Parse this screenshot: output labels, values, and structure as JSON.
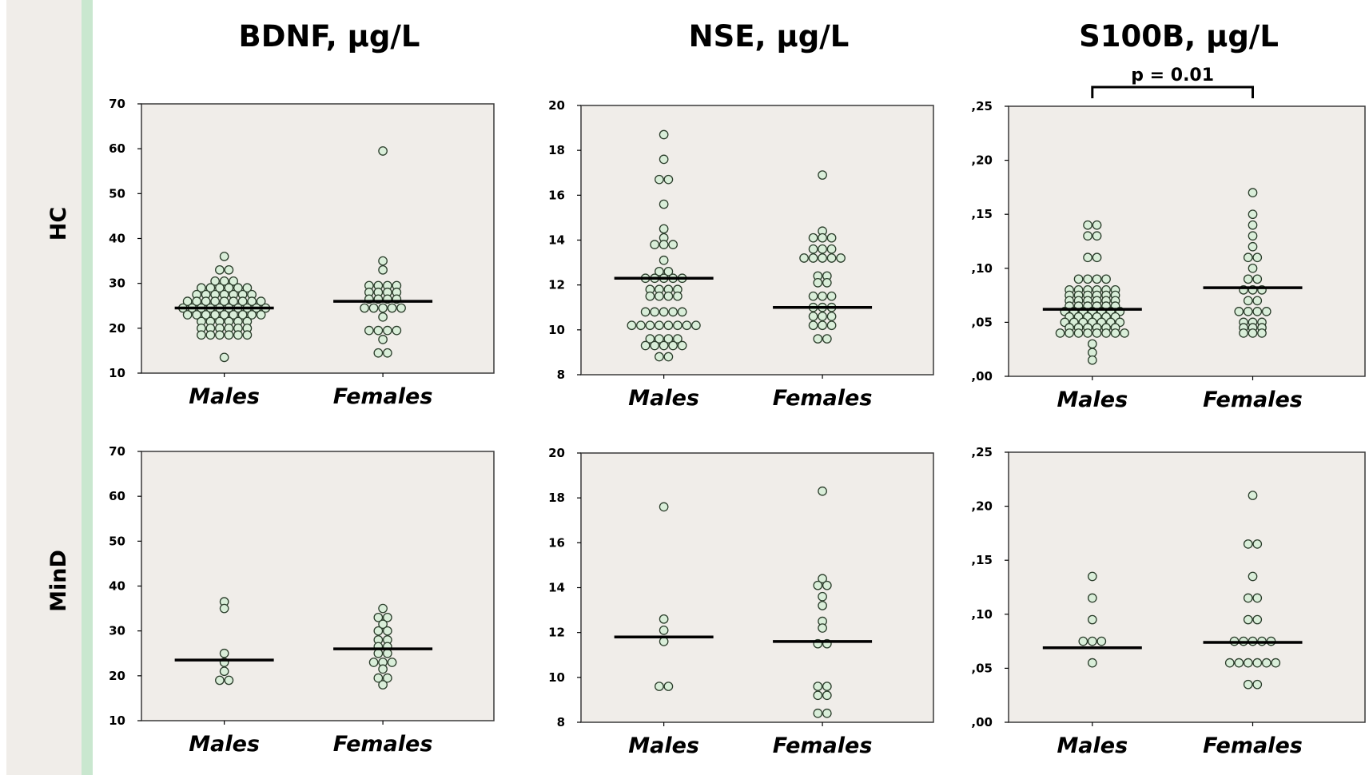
{
  "columns": [
    "BDNF, µg/L",
    "NSE, µg/L",
    "S100B, µg/L"
  ],
  "rows": [
    "HC",
    "MinD"
  ],
  "colors": {
    "panel_bg": "#f0ede9",
    "dot_fill": "#d9eed9",
    "dot_stroke": "#2b3d2b",
    "side_band": "#f0ede9",
    "side_stripe": "#c9e7cf"
  },
  "chart_data": [
    {
      "type": "scatter",
      "subtype": "dot-plot with median line",
      "title": "BDNF, µg/L",
      "group": "HC",
      "categories": [
        "Males",
        "Females"
      ],
      "ylim": [
        10,
        70
      ],
      "yticks": [
        "10",
        "20",
        "30",
        "40",
        "50",
        "60",
        "70"
      ],
      "series": [
        {
          "name": "Males",
          "median": 24.5,
          "values": [
            13.5,
            18.5,
            18.5,
            18.5,
            18.5,
            18.5,
            18.5,
            20,
            20,
            20,
            20,
            20,
            20,
            21.5,
            21.5,
            21.5,
            21.5,
            21.5,
            21.5,
            23,
            23,
            23,
            23,
            23,
            23,
            23,
            23,
            23,
            24.5,
            24.5,
            24.5,
            24.5,
            24.5,
            24.5,
            24.5,
            24.5,
            24.5,
            24.5,
            26,
            26,
            26,
            26,
            26,
            26,
            26,
            26,
            26,
            27.5,
            27.5,
            27.5,
            27.5,
            27.5,
            27.5,
            27.5,
            29,
            29,
            29,
            29,
            29,
            29,
            30.5,
            30.5,
            30.5,
            33,
            33,
            36
          ]
        },
        {
          "name": "Females",
          "median": 26,
          "values": [
            14.5,
            14.5,
            17.5,
            19.5,
            19.5,
            19.5,
            19.5,
            22.5,
            24.5,
            24.5,
            24.5,
            24.5,
            24.5,
            26.5,
            26.5,
            26.5,
            26.5,
            28,
            28,
            28,
            28,
            29.5,
            29.5,
            29.5,
            29.5,
            33,
            35,
            59.5
          ]
        }
      ]
    },
    {
      "type": "scatter",
      "subtype": "dot-plot with median line",
      "title": "NSE, µg/L",
      "group": "HC",
      "categories": [
        "Males",
        "Females"
      ],
      "ylim": [
        8,
        20
      ],
      "yticks": [
        "8",
        "10",
        "12",
        "14",
        "16",
        "18",
        "20"
      ],
      "series": [
        {
          "name": "Males",
          "median": 12.3,
          "values": [
            8.8,
            8.8,
            9.3,
            9.3,
            9.3,
            9.3,
            9.3,
            9.6,
            9.6,
            9.6,
            9.6,
            10.2,
            10.2,
            10.2,
            10.2,
            10.2,
            10.2,
            10.2,
            10.2,
            10.8,
            10.8,
            10.8,
            10.8,
            10.8,
            11.5,
            11.5,
            11.5,
            11.5,
            11.8,
            11.8,
            11.8,
            11.8,
            12.3,
            12.3,
            12.3,
            12.3,
            12.3,
            12.6,
            12.6,
            13.1,
            13.8,
            13.8,
            13.8,
            14.1,
            14.5,
            15.6,
            16.7,
            16.7,
            17.6,
            18.7
          ]
        },
        {
          "name": "Females",
          "median": 11,
          "values": [
            9.6,
            9.6,
            10.2,
            10.2,
            10.2,
            10.6,
            10.6,
            10.6,
            11,
            11,
            11,
            11.5,
            11.5,
            11.5,
            12.1,
            12.1,
            12.4,
            12.4,
            13.2,
            13.2,
            13.2,
            13.2,
            13.2,
            13.6,
            13.6,
            13.6,
            14.1,
            14.1,
            14.1,
            14.4,
            16.9
          ]
        }
      ]
    },
    {
      "type": "scatter",
      "subtype": "dot-plot with median line",
      "title": "S100B, µg/L",
      "group": "HC",
      "categories": [
        "Males",
        "Females"
      ],
      "ylim": [
        0,
        0.25
      ],
      "yticks": [
        ",00",
        ",05",
        ",10",
        ",15",
        ",20",
        ",25"
      ],
      "annotation": {
        "text": "p = 0.01",
        "between": [
          "Males",
          "Females"
        ]
      },
      "series": [
        {
          "name": "Males",
          "median": 0.062,
          "values": [
            0.015,
            0.022,
            0.03,
            0.04,
            0.04,
            0.04,
            0.04,
            0.04,
            0.04,
            0.04,
            0.04,
            0.045,
            0.045,
            0.045,
            0.045,
            0.045,
            0.045,
            0.05,
            0.05,
            0.05,
            0.05,
            0.05,
            0.05,
            0.05,
            0.055,
            0.055,
            0.055,
            0.055,
            0.055,
            0.055,
            0.06,
            0.06,
            0.06,
            0.06,
            0.06,
            0.06,
            0.06,
            0.065,
            0.065,
            0.065,
            0.065,
            0.065,
            0.065,
            0.07,
            0.07,
            0.07,
            0.07,
            0.07,
            0.07,
            0.075,
            0.075,
            0.075,
            0.075,
            0.075,
            0.075,
            0.08,
            0.08,
            0.08,
            0.08,
            0.08,
            0.08,
            0.09,
            0.09,
            0.09,
            0.09,
            0.11,
            0.11,
            0.13,
            0.13,
            0.14,
            0.14
          ]
        },
        {
          "name": "Females",
          "median": 0.082,
          "values": [
            0.04,
            0.04,
            0.04,
            0.045,
            0.045,
            0.045,
            0.05,
            0.05,
            0.05,
            0.06,
            0.06,
            0.06,
            0.06,
            0.07,
            0.07,
            0.08,
            0.08,
            0.08,
            0.09,
            0.09,
            0.1,
            0.11,
            0.11,
            0.12,
            0.13,
            0.14,
            0.15,
            0.17
          ]
        }
      ]
    },
    {
      "type": "scatter",
      "subtype": "dot-plot with median line",
      "title": "BDNF, µg/L",
      "group": "MinD",
      "categories": [
        "Males",
        "Females"
      ],
      "ylim": [
        10,
        70
      ],
      "yticks": [
        "10",
        "20",
        "30",
        "40",
        "50",
        "60",
        "70"
      ],
      "series": [
        {
          "name": "Males",
          "median": 23.5,
          "values": [
            19,
            19,
            21,
            23,
            25,
            35,
            36.5
          ]
        },
        {
          "name": "Females",
          "median": 26,
          "values": [
            18,
            19.5,
            19.5,
            21.5,
            23,
            23,
            23,
            25,
            25,
            26.5,
            26.5,
            28,
            28,
            30,
            30,
            31.5,
            33,
            33,
            35
          ]
        }
      ]
    },
    {
      "type": "scatter",
      "subtype": "dot-plot with median line",
      "title": "NSE, µg/L",
      "group": "MinD",
      "categories": [
        "Males",
        "Females"
      ],
      "ylim": [
        8,
        20
      ],
      "yticks": [
        "8",
        "10",
        "12",
        "14",
        "16",
        "18",
        "20"
      ],
      "series": [
        {
          "name": "Males",
          "median": 11.8,
          "values": [
            9.6,
            9.6,
            11.6,
            12.1,
            12.6,
            17.6
          ]
        },
        {
          "name": "Females",
          "median": 11.6,
          "values": [
            8.4,
            8.4,
            9.2,
            9.2,
            9.6,
            9.6,
            11.5,
            11.5,
            12.2,
            12.5,
            13.2,
            13.6,
            14.1,
            14.1,
            14.4,
            18.3
          ]
        }
      ]
    },
    {
      "type": "scatter",
      "subtype": "dot-plot with median line",
      "title": "S100B, µg/L",
      "group": "MinD",
      "categories": [
        "Males",
        "Females"
      ],
      "ylim": [
        0,
        0.25
      ],
      "yticks": [
        ",00",
        ",05",
        ",10",
        ",15",
        ",20",
        ",25"
      ],
      "series": [
        {
          "name": "Males",
          "median": 0.069,
          "values": [
            0.055,
            0.075,
            0.075,
            0.075,
            0.095,
            0.115,
            0.135
          ]
        },
        {
          "name": "Females",
          "median": 0.074,
          "values": [
            0.035,
            0.035,
            0.055,
            0.055,
            0.055,
            0.055,
            0.055,
            0.055,
            0.075,
            0.075,
            0.075,
            0.075,
            0.075,
            0.095,
            0.095,
            0.115,
            0.115,
            0.135,
            0.165,
            0.165,
            0.21
          ]
        }
      ]
    }
  ]
}
